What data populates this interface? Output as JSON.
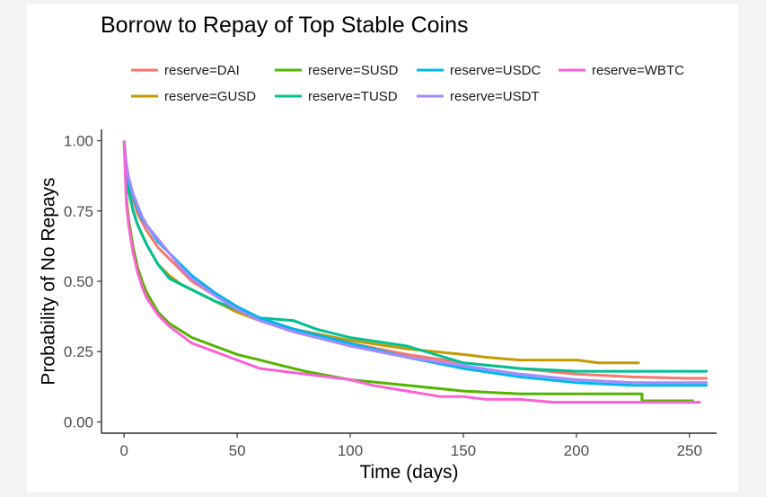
{
  "chart_data": {
    "type": "line",
    "title": "Borrow to Repay of Top Stable Coins",
    "xlabel": "Time (days)",
    "ylabel": "Probability of No Repays",
    "xlim": [
      -10,
      262
    ],
    "ylim": [
      -0.04,
      1.04
    ],
    "x_ticks": [
      0,
      50,
      100,
      150,
      200,
      250
    ],
    "x_tick_labels": [
      "0",
      "50",
      "100",
      "150",
      "200",
      "250"
    ],
    "y_ticks": [
      0,
      0.25,
      0.5,
      0.75,
      1.0
    ],
    "y_tick_labels": [
      "0.00",
      "0.25",
      "0.50",
      "0.75",
      "1.00"
    ],
    "grid": false,
    "legend_position": "top",
    "series": [
      {
        "name": "reserve=DAI",
        "color": "#F8766D",
        "x": [
          0,
          1,
          2,
          4,
          6,
          8,
          10,
          15,
          20,
          25,
          30,
          40,
          50,
          60,
          75,
          100,
          125,
          150,
          175,
          200,
          225,
          250,
          258
        ],
        "y": [
          1.0,
          0.9,
          0.85,
          0.79,
          0.74,
          0.71,
          0.68,
          0.62,
          0.58,
          0.54,
          0.5,
          0.45,
          0.4,
          0.36,
          0.33,
          0.28,
          0.24,
          0.21,
          0.19,
          0.17,
          0.16,
          0.155,
          0.155
        ]
      },
      {
        "name": "reserve=GUSD",
        "color": "#C49A00",
        "x": [
          0,
          1,
          2,
          4,
          6,
          10,
          15,
          20,
          25,
          30,
          40,
          50,
          60,
          75,
          100,
          125,
          150,
          160,
          175,
          200,
          210,
          228
        ],
        "y": [
          1.0,
          0.88,
          0.82,
          0.75,
          0.7,
          0.63,
          0.56,
          0.52,
          0.49,
          0.47,
          0.43,
          0.39,
          0.36,
          0.33,
          0.29,
          0.26,
          0.24,
          0.23,
          0.22,
          0.22,
          0.21,
          0.21
        ]
      },
      {
        "name": "reserve=SUSD",
        "color": "#53B400",
        "x": [
          0,
          1,
          2,
          4,
          6,
          8,
          10,
          15,
          20,
          30,
          40,
          50,
          60,
          70,
          80,
          100,
          125,
          150,
          175,
          200,
          229,
          229,
          252
        ],
        "y": [
          1.0,
          0.8,
          0.72,
          0.62,
          0.55,
          0.5,
          0.46,
          0.39,
          0.35,
          0.3,
          0.27,
          0.24,
          0.22,
          0.2,
          0.18,
          0.15,
          0.13,
          0.11,
          0.1,
          0.1,
          0.1,
          0.075,
          0.075
        ]
      },
      {
        "name": "reserve=TUSD",
        "color": "#00C094",
        "x": [
          0,
          1,
          2,
          4,
          6,
          10,
          15,
          20,
          25,
          30,
          40,
          50,
          60,
          75,
          85,
          100,
          125,
          150,
          175,
          200,
          225,
          258
        ],
        "y": [
          1.0,
          0.88,
          0.82,
          0.75,
          0.7,
          0.63,
          0.56,
          0.51,
          0.49,
          0.47,
          0.43,
          0.4,
          0.37,
          0.36,
          0.33,
          0.3,
          0.27,
          0.21,
          0.19,
          0.18,
          0.18,
          0.18
        ]
      },
      {
        "name": "reserve=USDC",
        "color": "#00B6EB",
        "x": [
          0,
          1,
          2,
          4,
          6,
          8,
          10,
          15,
          20,
          25,
          30,
          40,
          50,
          60,
          75,
          100,
          125,
          150,
          175,
          200,
          225,
          258
        ],
        "y": [
          1.0,
          0.9,
          0.86,
          0.8,
          0.76,
          0.72,
          0.7,
          0.64,
          0.6,
          0.56,
          0.52,
          0.46,
          0.41,
          0.37,
          0.33,
          0.28,
          0.23,
          0.19,
          0.16,
          0.14,
          0.13,
          0.13
        ]
      },
      {
        "name": "reserve=USDT",
        "color": "#A58AFF",
        "x": [
          0,
          1,
          2,
          4,
          6,
          8,
          10,
          15,
          20,
          25,
          30,
          40,
          50,
          60,
          75,
          100,
          125,
          150,
          175,
          200,
          225,
          258
        ],
        "y": [
          1.0,
          0.92,
          0.87,
          0.81,
          0.77,
          0.73,
          0.7,
          0.65,
          0.6,
          0.55,
          0.51,
          0.45,
          0.4,
          0.36,
          0.32,
          0.27,
          0.23,
          0.2,
          0.17,
          0.15,
          0.14,
          0.14
        ]
      },
      {
        "name": "reserve=WBTC",
        "color": "#FB61D7",
        "x": [
          0,
          1,
          2,
          4,
          6,
          8,
          10,
          15,
          20,
          30,
          40,
          50,
          60,
          70,
          80,
          90,
          100,
          110,
          125,
          140,
          150,
          160,
          175,
          190,
          200,
          255
        ],
        "y": [
          1.0,
          0.78,
          0.7,
          0.6,
          0.53,
          0.48,
          0.44,
          0.38,
          0.34,
          0.28,
          0.25,
          0.22,
          0.19,
          0.18,
          0.17,
          0.16,
          0.15,
          0.13,
          0.11,
          0.09,
          0.09,
          0.08,
          0.08,
          0.07,
          0.07,
          0.07
        ]
      }
    ]
  }
}
